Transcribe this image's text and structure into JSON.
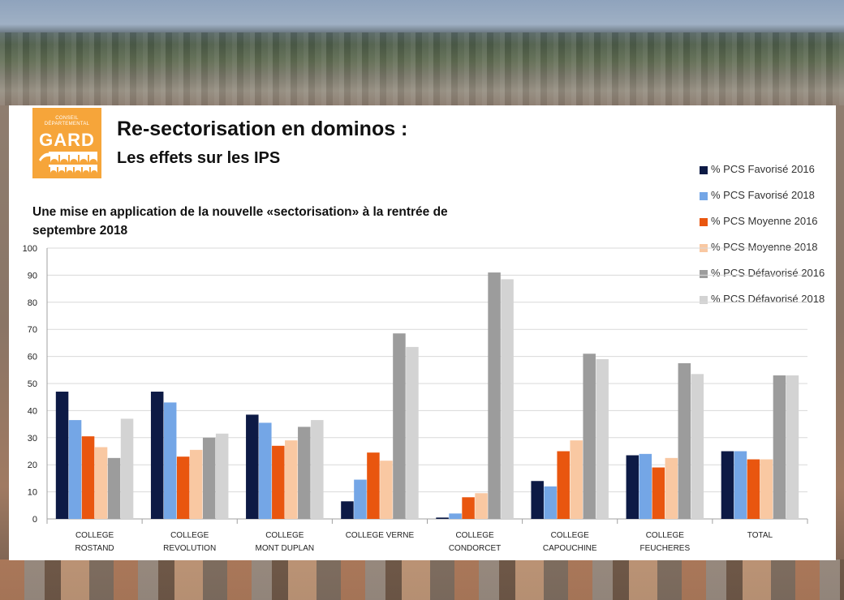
{
  "slide": {
    "logo_line1": "CONSEIL",
    "logo_line2": "DÉPARTEMENTAL",
    "logo_name": "GARD",
    "title": "Re-sectorisation en dominos :",
    "subtitle": "Les effets sur les IPS",
    "caption": "Une mise en application de la nouvelle «sectorisation» à la rentrée de septembre 2018"
  },
  "colors": {
    "logo_orange": "#f6a53a",
    "panel": "#ffffff"
  },
  "chart_data": {
    "type": "bar",
    "categories": [
      [
        "COLLEGE",
        "ROSTAND"
      ],
      [
        "COLLEGE",
        "REVOLUTION"
      ],
      [
        "COLLEGE",
        "MONT DUPLAN"
      ],
      [
        "COLLEGE VERNE"
      ],
      [
        "COLLEGE",
        "CONDORCET"
      ],
      [
        "COLLEGE",
        "CAPOUCHINE"
      ],
      [
        "COLLEGE",
        "FEUCHERES"
      ],
      [
        "TOTAL"
      ]
    ],
    "ylim": [
      0,
      100
    ],
    "yticks": [
      0,
      10,
      20,
      30,
      40,
      50,
      60,
      70,
      80,
      90,
      100
    ],
    "grid": true,
    "legend_position": "top-right",
    "series": [
      {
        "name": "% PCS Favorisé 2016",
        "color": "#0d1a45",
        "values": [
          47,
          47,
          38.5,
          6.5,
          0.5,
          14,
          23.5,
          25
        ]
      },
      {
        "name": "% PCS Favorisé 2018",
        "color": "#74a6e6",
        "values": [
          36.5,
          43,
          35.5,
          14.5,
          2,
          12,
          24,
          25
        ]
      },
      {
        "name": "% PCS Moyenne 2016",
        "color": "#e9560f",
        "values": [
          30.5,
          23,
          27,
          24.5,
          8,
          25,
          19,
          22
        ]
      },
      {
        "name": "% PCS Moyenne 2018",
        "color": "#f9c8a2",
        "values": [
          26.5,
          25.5,
          29,
          21.5,
          9.5,
          29,
          22.5,
          22
        ]
      },
      {
        "name": "% PCS Défavorisé 2016",
        "color": "#9c9c9c",
        "values": [
          22.5,
          30,
          34,
          68.5,
          91,
          61,
          57.5,
          53
        ]
      },
      {
        "name": "% PCS Défavorisé 2018",
        "color": "#d3d3d3",
        "values": [
          37,
          31.5,
          36.5,
          63.5,
          88.5,
          59,
          53.5,
          53
        ]
      }
    ]
  }
}
